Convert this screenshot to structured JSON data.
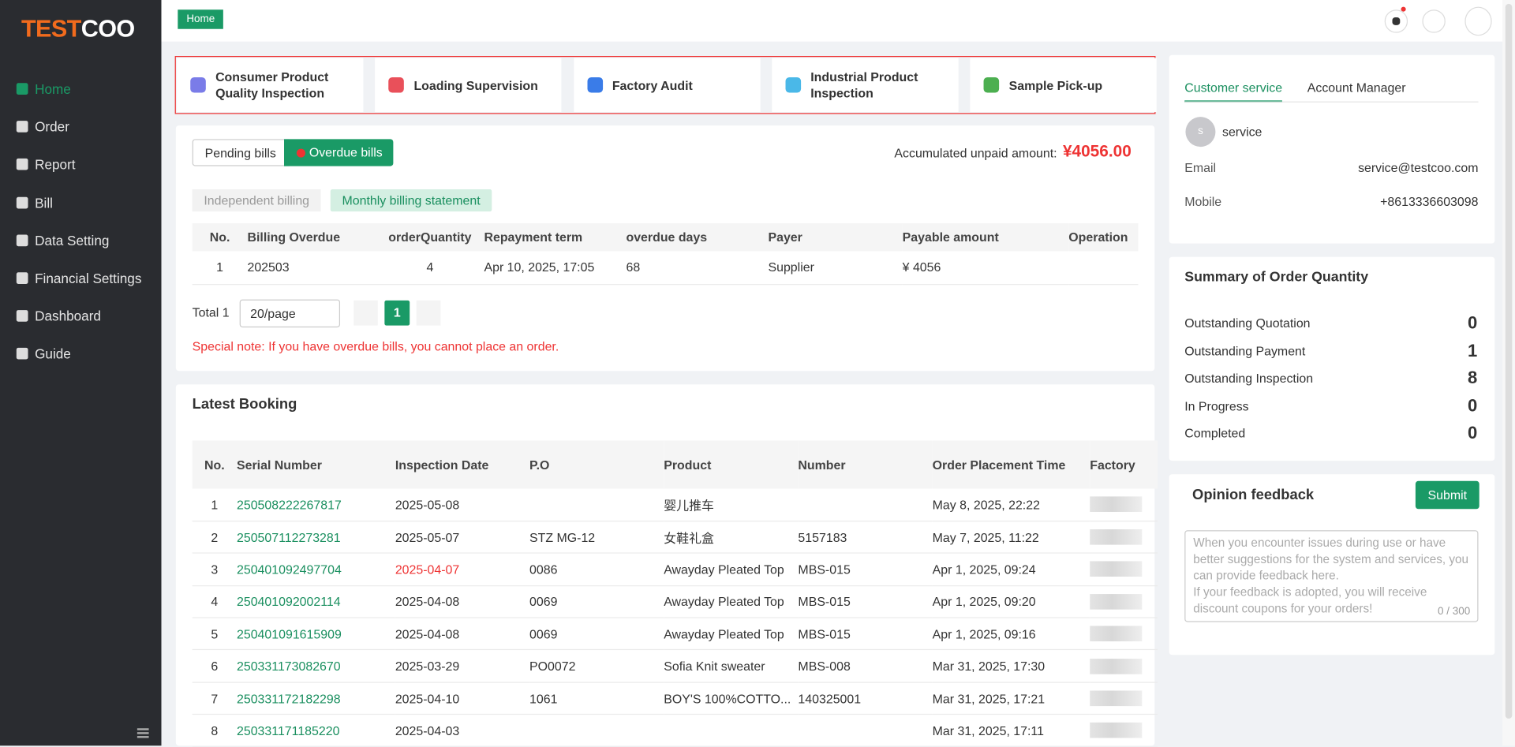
{
  "logo": {
    "part1": "TEST",
    "part2": "COO"
  },
  "menu": [
    "Home",
    "Order",
    "Report",
    "Bill",
    "Data Setting",
    "Financial Settings",
    "Dashboard",
    "Guide"
  ],
  "breadcrumb": "Home",
  "services": [
    "Consumer Product Quality Inspection",
    "Loading Supervision",
    "Factory Audit",
    "Industrial Product Inspection",
    "Sample Pick-up"
  ],
  "bills": {
    "tabs": [
      "Pending bills",
      "Overdue bills"
    ],
    "unpaid_label": "Accumulated unpaid amount:",
    "unpaid_amount": "¥4056.00",
    "billing_tabs": [
      "Independent billing",
      "Monthly billing statement"
    ],
    "table": {
      "headers": [
        "No.",
        "Billing Overdue",
        "orderQuantity",
        "Repayment term",
        "overdue days",
        "Payer",
        "Payable amount",
        "Operation"
      ],
      "rows": [
        [
          "1",
          "202503",
          "4",
          "Apr 10, 2025, 17:05",
          "68",
          "Supplier",
          "¥ 4056"
        ]
      ]
    },
    "pagination": {
      "total": "Total 1",
      "page_size": "20/page",
      "page": "1"
    },
    "note": "Special note: If you have overdue bills, you cannot place an order."
  },
  "latest_booking": {
    "title": "Latest Booking",
    "headers": [
      "No.",
      "Serial Number",
      "Inspection Date",
      "P.O",
      "Product",
      "Number",
      "Order Placement Time",
      "Factory"
    ],
    "rows": [
      [
        "1",
        "250508222267817",
        "2025-05-08",
        null,
        "婴儿推车",
        null,
        "May 8, 2025, 22:22"
      ],
      [
        "2",
        "250507112273281",
        "2025-05-07",
        "STZ MG-12",
        "女鞋礼盒",
        "5157183",
        "May 7, 2025, 11:22"
      ],
      [
        "3",
        "250401092497704",
        "2025-04-07",
        "0086",
        "Awayday Pleated Top",
        "MBS-015",
        "Apr 1, 2025, 09:24"
      ],
      [
        "4",
        "250401092002114",
        "2025-04-08",
        "0069",
        "Awayday Pleated Top",
        "MBS-015",
        "Apr 1, 2025, 09:20"
      ],
      [
        "5",
        "250401091615909",
        "2025-04-08",
        "0069",
        "Awayday Pleated Top",
        "MBS-015",
        "Apr 1, 2025, 09:16"
      ],
      [
        "6",
        "250331173082670",
        "2025-03-29",
        "PO0072",
        "Sofia Knit sweater",
        "MBS-008",
        "Mar 31, 2025, 17:30"
      ],
      [
        "7",
        "250331172182298",
        "2025-04-10",
        "1061",
        "BOY'S 100%COTTO...",
        "140325001",
        "Mar 31, 2025, 17:21"
      ],
      [
        "8",
        "250331171185220",
        "2025-04-03",
        null,
        null,
        null,
        "Mar 31, 2025, 17:11"
      ]
    ]
  },
  "contacts": {
    "tabs": [
      "Customer service",
      "Account Manager"
    ],
    "avatar": "s",
    "name": "service",
    "fields": [
      {
        "label": "Email",
        "value": "service@testcoo.com"
      },
      {
        "label": "Mobile",
        "value": "+8613336603098"
      }
    ]
  },
  "summary": {
    "title": "Summary of Order Quantity",
    "items": [
      {
        "label": "Outstanding Quotation",
        "value": 0
      },
      {
        "label": "Outstanding Payment",
        "value": 1
      },
      {
        "label": "Outstanding Inspection",
        "value": 8
      },
      {
        "label": "In Progress",
        "value": 0
      },
      {
        "label": "Completed",
        "value": 0
      }
    ]
  },
  "feedback": {
    "title": "Opinion feedback",
    "button": "Submit",
    "placeholder": [
      "When you encounter issues during use or have better suggestions for the system and services, you can provide feedback here.",
      "If your feedback is adopted, you will receive discount coupons for your orders!"
    ],
    "counter": "0 / 300"
  }
}
